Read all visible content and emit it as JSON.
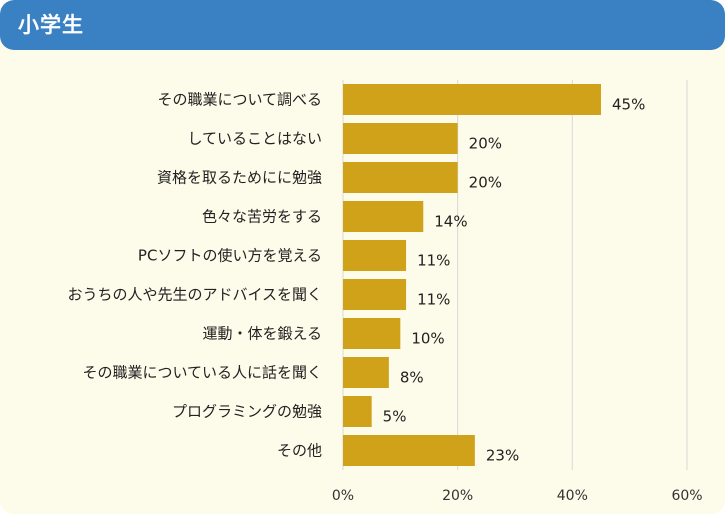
{
  "header": {
    "title": "小学生"
  },
  "colors": {
    "header": "#3a81c4",
    "background": "#fdfbe9",
    "bar": "#cfa21a",
    "grid": "#d9d9d9"
  },
  "chart_data": {
    "type": "bar",
    "orientation": "horizontal",
    "categories": [
      "その職業について調べる",
      "していることはない",
      "資格を取るためにに勉強",
      "色々な苦労をする",
      "PCソフトの使い方を覚える",
      "おうちの人や先生のアドバイスを聞く",
      "運動・体を鍛える",
      "その職業についている人に話を聞く",
      "プログラミングの勉強",
      "その他"
    ],
    "values": [
      45,
      20,
      20,
      14,
      11,
      11,
      10,
      8,
      5,
      23
    ],
    "value_labels": [
      "45%",
      "20%",
      "20%",
      "14%",
      "11%",
      "11%",
      "10%",
      "8%",
      "5%",
      "23%"
    ],
    "xlim": [
      0,
      60
    ],
    "xticks": [
      0,
      20,
      40,
      60
    ],
    "xtick_labels": [
      "0%",
      "20%",
      "40%",
      "60%"
    ],
    "grid": true
  }
}
